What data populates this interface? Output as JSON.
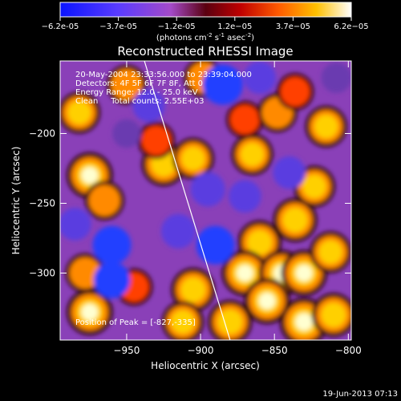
{
  "chart_data": {
    "type": "heatmap",
    "title": "Reconstructed RHESSI Image",
    "xlabel": "Heliocentric X (arcsec)",
    "ylabel": "Heliocentric Y (arcsec)",
    "xlim": [
      -995,
      -798
    ],
    "ylim": [
      -348,
      -148
    ],
    "x_ticks": [
      -950,
      -900,
      -850,
      -800
    ],
    "y_ticks": [
      -200,
      -250,
      -300
    ],
    "colorbar": {
      "range": [
        -6.2e-05,
        6.2e-05
      ],
      "ticks": [
        "-6.2e-05",
        "-3.7e-05",
        "-1.2e-05",
        "1.2e-05",
        "3.7e-05",
        "6.2e-05"
      ],
      "unit_text": "(photons cm",
      "unit_sup1": "-2",
      "unit_mid": " s",
      "unit_sup2": "-1",
      "unit_end": " asec",
      "unit_sup3": "-2",
      "unit_close": ")"
    },
    "annotations": [
      "20-May-2004 23:33:56.000 to 23:39:04.000",
      "Detectors: 4F 5F 6F 7F 8F, Att 0",
      "Energy Range: 12.0 - 25.0 keV",
      "Clean     Total counts: 2.55E+03"
    ],
    "peak_label": "Position of Peak = [-827,-335]",
    "limb_line": [
      [
        -938,
        -148
      ],
      [
        -880,
        -348
      ]
    ],
    "intensity_blobs": [
      {
        "x": -982,
        "y": -185,
        "v": 0.7
      },
      {
        "x": -975,
        "y": -230,
        "v": 0.9
      },
      {
        "x": -965,
        "y": -248,
        "v": 0.6
      },
      {
        "x": -978,
        "y": -300,
        "v": 0.6
      },
      {
        "x": -975,
        "y": -328,
        "v": 0.9
      },
      {
        "x": -945,
        "y": -310,
        "v": 0.5
      },
      {
        "x": -925,
        "y": -222,
        "v": 0.8
      },
      {
        "x": -905,
        "y": -218,
        "v": 0.7
      },
      {
        "x": -930,
        "y": -205,
        "v": 0.5
      },
      {
        "x": -950,
        "y": -165,
        "v": 0.6
      },
      {
        "x": -898,
        "y": -160,
        "v": 0.6
      },
      {
        "x": -905,
        "y": -312,
        "v": 0.8
      },
      {
        "x": -912,
        "y": -335,
        "v": 0.7
      },
      {
        "x": -870,
        "y": -190,
        "v": 0.5
      },
      {
        "x": -865,
        "y": -215,
        "v": 0.7
      },
      {
        "x": -848,
        "y": -185,
        "v": 0.6
      },
      {
        "x": -836,
        "y": -170,
        "v": 0.5
      },
      {
        "x": -836,
        "y": -262,
        "v": 0.8
      },
      {
        "x": -823,
        "y": -238,
        "v": 0.7
      },
      {
        "x": -815,
        "y": -195,
        "v": 0.7
      },
      {
        "x": -860,
        "y": -278,
        "v": 0.8
      },
      {
        "x": -870,
        "y": -300,
        "v": 0.9
      },
      {
        "x": -845,
        "y": -300,
        "v": 0.9
      },
      {
        "x": -830,
        "y": -300,
        "v": 0.9
      },
      {
        "x": -812,
        "y": -285,
        "v": 0.7
      },
      {
        "x": -855,
        "y": -320,
        "v": 0.9
      },
      {
        "x": -830,
        "y": -335,
        "v": 1.0
      },
      {
        "x": -810,
        "y": -330,
        "v": 0.8
      },
      {
        "x": -880,
        "y": -335,
        "v": 0.8
      },
      {
        "x": -950,
        "y": -200,
        "v": -0.3
      },
      {
        "x": -960,
        "y": -280,
        "v": -0.8
      },
      {
        "x": -960,
        "y": -305,
        "v": -0.7
      },
      {
        "x": -895,
        "y": -240,
        "v": -0.6
      },
      {
        "x": -915,
        "y": -270,
        "v": -0.6
      },
      {
        "x": -890,
        "y": -280,
        "v": -0.8
      },
      {
        "x": -885,
        "y": -165,
        "v": -0.9
      },
      {
        "x": -860,
        "y": -160,
        "v": -0.5
      },
      {
        "x": -840,
        "y": -228,
        "v": -0.5
      },
      {
        "x": -870,
        "y": -245,
        "v": -0.5
      },
      {
        "x": -808,
        "y": -160,
        "v": -0.4
      },
      {
        "x": -935,
        "y": -180,
        "v": -0.5
      },
      {
        "x": -985,
        "y": -265,
        "v": -0.5
      }
    ]
  },
  "footer": {
    "timestamp": "19-Jun-2013 07:13"
  }
}
